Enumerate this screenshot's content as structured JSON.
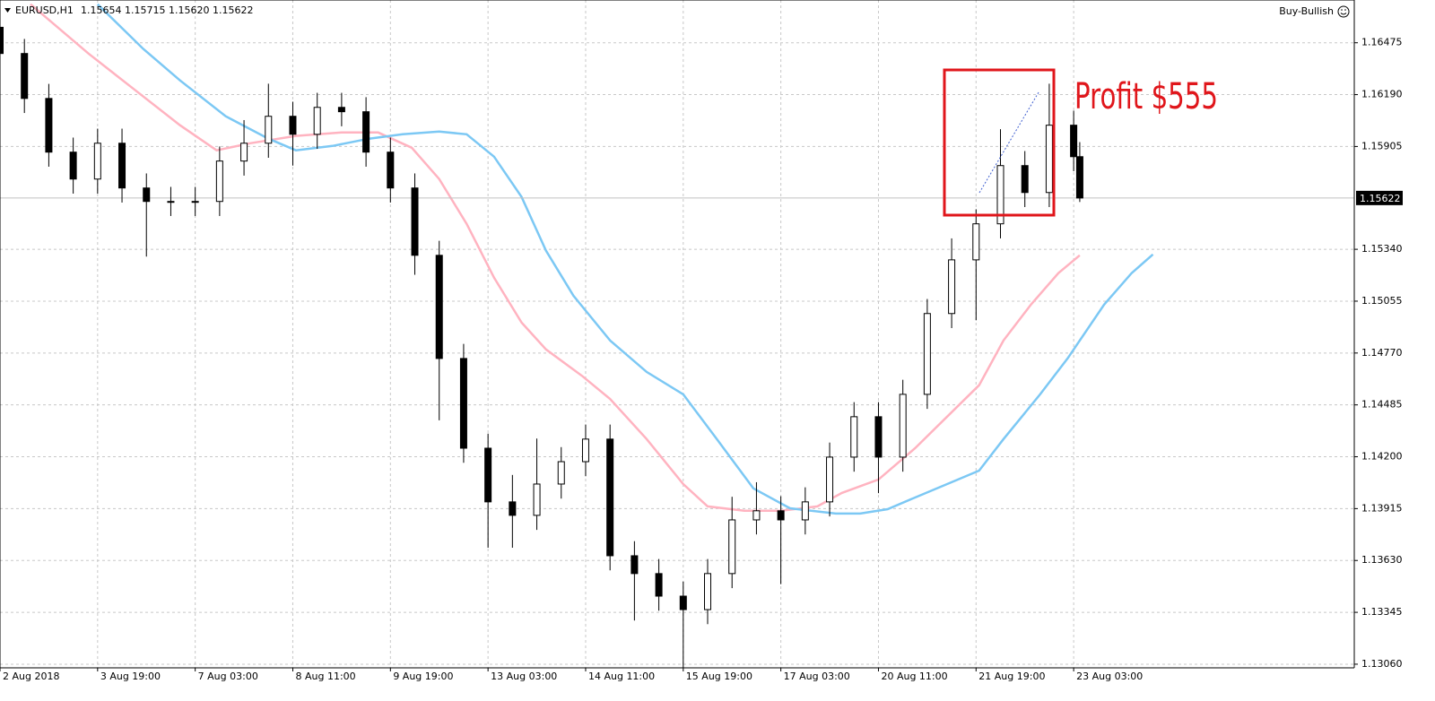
{
  "chart_data": {
    "type": "candlestick",
    "title": "EURUSD,H1",
    "subtitle": "1.15654 1.15715 1.15620 1.15622",
    "indicator": "Buy-Bullish",
    "annotation": "Profit $555",
    "current_price": 1.15622,
    "xlim": [
      0,
      444
    ],
    "ylim": [
      1.1304,
      1.1671
    ],
    "grid": true,
    "bull_color": "#ffffff",
    "bear_color": "#000000",
    "xticks": [
      {
        "value": 0,
        "label": "2 Aug 2018"
      },
      {
        "value": 32,
        "label": "3 Aug 19:00"
      },
      {
        "value": 64,
        "label": "7 Aug 03:00"
      },
      {
        "value": 96,
        "label": "8 Aug 11:00"
      },
      {
        "value": 128,
        "label": "9 Aug 19:00"
      },
      {
        "value": 160,
        "label": "13 Aug 03:00"
      },
      {
        "value": 192,
        "label": "14 Aug 11:00"
      },
      {
        "value": 224,
        "label": "15 Aug 19:00"
      },
      {
        "value": 256,
        "label": "17 Aug 03:00"
      },
      {
        "value": 288,
        "label": "20 Aug 11:00"
      },
      {
        "value": 320,
        "label": "21 Aug 19:00"
      },
      {
        "value": 352,
        "label": "23 Aug 03:00"
      }
    ],
    "yticks": [
      1.16475,
      {
        "value": 1.1619,
        "label": "1.16190"
      },
      1.15905,
      {
        "value": 1.1534,
        "label": "1.15340"
      },
      1.15055,
      {
        "value": 1.1477,
        "label": "1.14770"
      },
      1.14485,
      {
        "value": 1.142,
        "label": "1.14200"
      },
      1.13915,
      {
        "value": 1.1363,
        "label": "1.13630"
      },
      1.13345,
      {
        "value": 1.1306,
        "label": "1.13060"
      }
    ],
    "x": [
      0,
      8,
      16,
      24,
      32,
      40,
      48,
      56,
      64,
      72,
      80,
      88,
      96,
      104,
      112,
      120,
      128,
      136,
      144,
      152,
      160,
      168,
      176,
      184,
      192,
      200,
      208,
      216,
      224,
      232,
      240,
      248,
      256,
      264,
      272,
      280,
      288,
      296,
      304,
      312,
      320,
      328,
      336,
      344,
      352,
      354
    ],
    "open": [
      1.1656,
      1.16416,
      1.16169,
      1.15874,
      1.15726,
      1.15923,
      1.15677,
      1.15603,
      1.15603,
      1.15603,
      1.15825,
      1.15923,
      1.16071,
      1.15972,
      1.1612,
      1.16096,
      1.15874,
      1.15677,
      1.15307,
      1.1474,
      1.14247,
      1.13952,
      1.13878,
      1.1405,
      1.14173,
      1.14297,
      1.13656,
      1.13558,
      1.13434,
      1.1336,
      1.13558,
      1.13853,
      1.13903,
      1.13853,
      1.13952,
      1.14198,
      1.1442,
      1.14198,
      1.14543,
      1.14987,
      1.15282,
      1.1548,
      1.158,
      1.15652,
      1.16022,
      1.15849
    ],
    "high": [
      1.1664,
      1.16496,
      1.16249,
      1.15954,
      1.16003,
      1.16003,
      1.15757,
      1.15683,
      1.15683,
      1.15905,
      1.1605,
      1.1625,
      1.16151,
      1.162,
      1.162,
      1.16176,
      1.15954,
      1.15757,
      1.15387,
      1.1482,
      1.14327,
      1.141,
      1.143,
      1.14253,
      1.14377,
      1.14377,
      1.13736,
      1.13638,
      1.13514,
      1.13638,
      1.1398,
      1.1406,
      1.13983,
      1.14032,
      1.14278,
      1.145,
      1.145,
      1.14623,
      1.15067,
      1.154,
      1.1556,
      1.16,
      1.1588,
      1.1625,
      1.16102,
      1.15929
    ],
    "low": [
      1.16336,
      1.16089,
      1.15794,
      1.15646,
      1.15646,
      1.15597,
      1.153,
      1.15523,
      1.15523,
      1.15523,
      1.15745,
      1.15843,
      1.158,
      1.15892,
      1.16016,
      1.15794,
      1.15597,
      1.152,
      1.144,
      1.14167,
      1.137,
      1.137,
      1.13798,
      1.1397,
      1.14093,
      1.13576,
      1.133,
      1.13354,
      1.1304,
      1.1328,
      1.13478,
      1.13773,
      1.135,
      1.13773,
      1.13872,
      1.14118,
      1.14,
      1.14118,
      1.14463,
      1.14907,
      1.1495,
      1.154,
      1.15572,
      1.15572,
      1.15769,
      1.156
    ],
    "close": [
      1.16416,
      1.16169,
      1.15874,
      1.15726,
      1.15923,
      1.15677,
      1.15603,
      1.15603,
      1.15603,
      1.15825,
      1.15923,
      1.16071,
      1.15972,
      1.1612,
      1.16096,
      1.15874,
      1.15677,
      1.15307,
      1.1474,
      1.14247,
      1.13952,
      1.13878,
      1.1405,
      1.14173,
      1.14297,
      1.13656,
      1.13558,
      1.13434,
      1.1336,
      1.13558,
      1.13853,
      1.13903,
      1.13853,
      1.13952,
      1.14198,
      1.1442,
      1.14198,
      1.14543,
      1.14987,
      1.15282,
      1.1548,
      1.158,
      1.15652,
      1.16022,
      1.15849,
      1.15622
    ],
    "lines": [
      {
        "color": "#ffb3c0",
        "x": [
          10,
          29,
          44,
          59,
          71,
          82,
          97,
          112,
          124,
          135,
          144,
          153,
          162,
          171,
          179,
          191,
          200,
          212,
          224,
          232,
          244,
          256,
          268,
          276,
          288,
          300,
          312,
          321,
          329,
          338,
          347,
          354
        ],
        "values": [
          1.16687,
          1.16416,
          1.16219,
          1.16022,
          1.15884,
          1.15923,
          1.15963,
          1.15982,
          1.15982,
          1.15898,
          1.15726,
          1.1548,
          1.15184,
          1.14937,
          1.1479,
          1.14642,
          1.14518,
          1.14297,
          1.1405,
          1.13927,
          1.13903,
          1.13903,
          1.13927,
          1.14001,
          1.14075,
          1.14247,
          1.14445,
          1.14593,
          1.14839,
          1.15036,
          1.15209,
          1.15307
        ]
      },
      {
        "color": "#7cc8f4",
        "x": [
          32,
          47,
          59,
          74,
          88,
          97,
          109,
          121,
          132,
          144,
          153,
          162,
          171,
          179,
          188,
          200,
          212,
          224,
          235,
          247,
          259,
          274,
          282,
          291,
          300,
          312,
          321,
          329,
          341,
          350,
          362,
          371,
          378
        ],
        "values": [
          1.16687,
          1.16441,
          1.16268,
          1.16071,
          1.15948,
          1.15884,
          1.15908,
          1.15948,
          1.15972,
          1.15987,
          1.15972,
          1.15849,
          1.15627,
          1.15332,
          1.15085,
          1.14839,
          1.14666,
          1.14543,
          1.14297,
          1.14026,
          1.13917,
          1.13888,
          1.13888,
          1.13912,
          1.13976,
          1.1406,
          1.14124,
          1.14297,
          1.14543,
          1.1474,
          1.15036,
          1.15209,
          1.15312
        ]
      }
    ]
  }
}
